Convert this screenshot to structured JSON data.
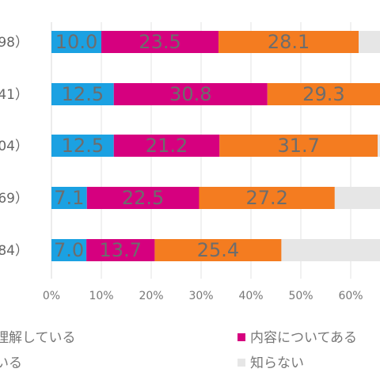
{
  "chart_data": {
    "type": "bar",
    "orientation": "horizontal",
    "stacked": true,
    "categories": [
      "98）",
      "41）",
      "04）",
      "69）",
      "84）"
    ],
    "series": [
      {
        "name": "理解している",
        "color": "#1ba1e2",
        "values": [
          10.0,
          12.5,
          12.5,
          7.1,
          7.0
        ]
      },
      {
        "name": "内容についてある",
        "color": "#d6007f",
        "values": [
          23.5,
          30.8,
          21.2,
          22.5,
          13.7
        ]
      },
      {
        "name": "いる",
        "color": "#f47c20",
        "values": [
          28.1,
          29.3,
          31.7,
          27.2,
          25.4
        ]
      },
      {
        "name": "知らない",
        "color": "#e6e6e6",
        "values": [
          38.4,
          27.4,
          34.6,
          43.2,
          53.9
        ]
      }
    ],
    "data_labels": [
      [
        "10.0",
        "23.5",
        "28.1"
      ],
      [
        "12.5",
        "30.8",
        "29.3"
      ],
      [
        "12.5",
        "21.2",
        "31.7"
      ],
      [
        "7.1",
        "22.5",
        "27.2"
      ],
      [
        "7.0",
        "13.7",
        "25.4"
      ]
    ],
    "xticks": [
      "0%",
      "10%",
      "20%",
      "30%",
      "40%",
      "50%",
      "60%"
    ],
    "xlim": [
      0,
      100
    ],
    "grid": true,
    "legend_position": "bottom"
  },
  "legend": {
    "items": [
      {
        "label": "理解している",
        "show_swatch": false
      },
      {
        "label": "内容についてある",
        "show_swatch": true,
        "color": "#d6007f"
      },
      {
        "label": "いる",
        "show_swatch": false
      },
      {
        "label": "知らない",
        "show_swatch": true,
        "color": "#e6e6e6"
      }
    ]
  }
}
